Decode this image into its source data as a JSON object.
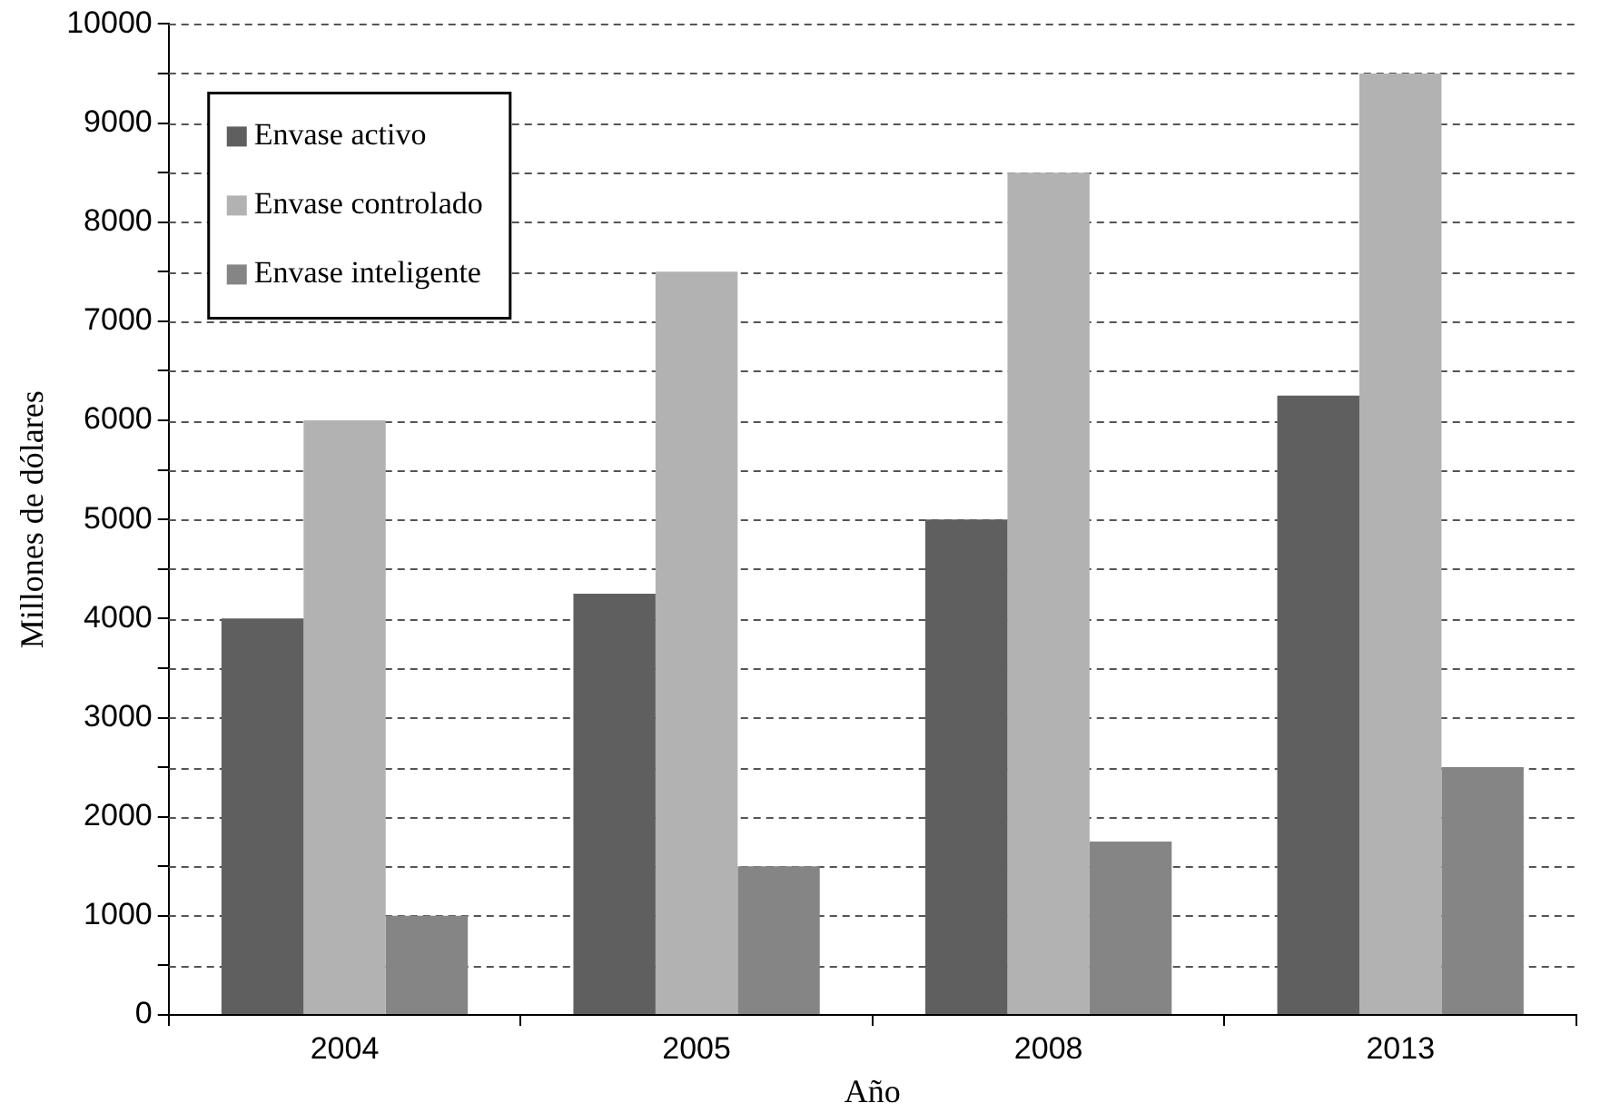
{
  "chart_data": {
    "type": "bar",
    "xlabel": "Año",
    "ylabel": "Millones de dólares",
    "categories": [
      "2004",
      "2005",
      "2008",
      "2013"
    ],
    "series": [
      {
        "name": "Envase activo",
        "color": "#5f5f5f",
        "values": [
          4000,
          4250,
          5000,
          6250
        ]
      },
      {
        "name": "Envase controlado",
        "color": "#b2b2b2",
        "values": [
          6000,
          7500,
          8500,
          9500
        ]
      },
      {
        "name": "Envase inteligente",
        "color": "#858585",
        "values": [
          1000,
          1500,
          1750,
          2500
        ]
      }
    ],
    "ylim": [
      0,
      10000
    ],
    "yticks": [
      0,
      {
        "value": 500,
        "label": null
      },
      1000,
      {
        "value": 1500,
        "label": null
      },
      2000,
      {
        "value": 2500,
        "label": null
      },
      3000,
      {
        "value": 3500,
        "label": null
      },
      4000,
      {
        "value": 4500,
        "label": null
      },
      5000,
      {
        "value": 5500,
        "label": null
      },
      6000,
      {
        "value": 6500,
        "label": null
      },
      7000,
      {
        "value": 7500,
        "label": null
      },
      8000,
      {
        "value": 8500,
        "label": null
      },
      9000,
      {
        "value": 9500,
        "label": null
      },
      10000
    ],
    "grid": "y",
    "legend": "top left"
  }
}
